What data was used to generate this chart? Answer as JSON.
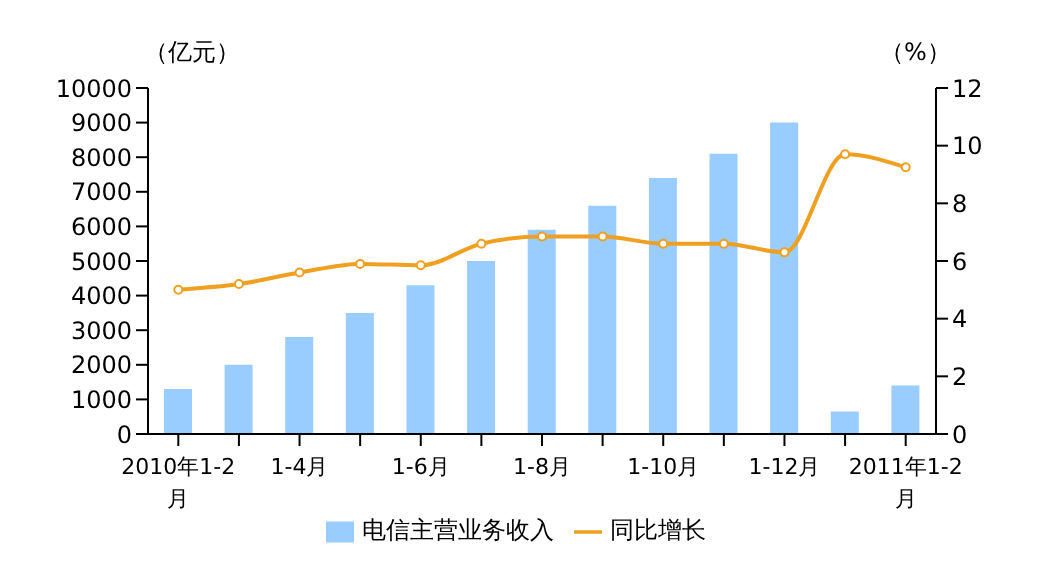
{
  "chart_data": {
    "type": "bar",
    "ylabel": "（亿元）",
    "y2label": "（%）",
    "categories": [
      "2010年1-2月",
      null,
      "1-4月",
      null,
      "1-6月",
      null,
      "1-8月",
      null,
      "1-10月",
      null,
      "1-12月",
      null,
      "2011年1-2月"
    ],
    "series": [
      {
        "name": "电信主营业务收入",
        "color": "#99ccff",
        "values": [
          1300,
          2000,
          2800,
          3500,
          4300,
          5000,
          5900,
          6600,
          7400,
          8100,
          9000,
          650,
          1400
        ]
      },
      {
        "name": "同比增长",
        "type": "line",
        "axis": "y2",
        "color": "#f0a020",
        "marker": "circle",
        "values": [
          5.0,
          5.2,
          5.6,
          5.9,
          5.85,
          6.6,
          6.85,
          6.85,
          6.6,
          6.6,
          6.3,
          9.7,
          9.25
        ]
      }
    ],
    "ylim": [
      0,
      10000
    ],
    "yticks": [
      0,
      1000,
      2000,
      3000,
      4000,
      5000,
      6000,
      7000,
      8000,
      9000,
      10000
    ],
    "y2lim": [
      0,
      12
    ],
    "y2ticks": [
      0,
      2,
      4,
      6,
      8,
      10,
      12
    ],
    "grid": false,
    "legend": "bottom"
  }
}
